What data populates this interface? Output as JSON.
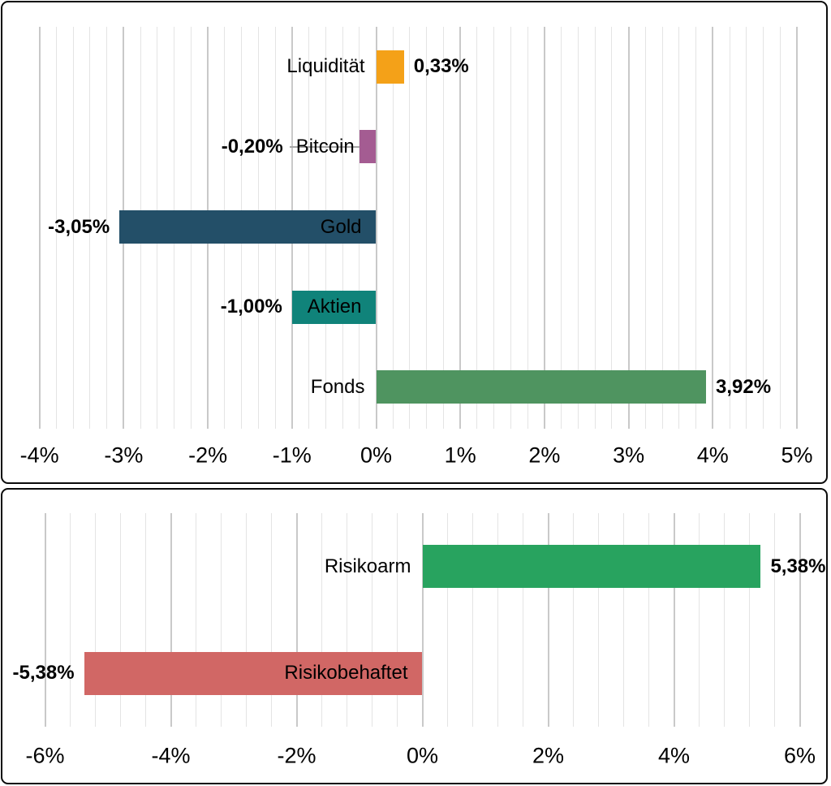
{
  "colors": {
    "panel_border": "#0b0b0b",
    "background": "#ffffff",
    "grid_major": "#c9c9c9",
    "grid_minor": "#e4e4e4",
    "leader_line": "#a6a6a6",
    "text": "#000000"
  },
  "chart_data": [
    {
      "type": "bar",
      "orientation": "horizontal",
      "title": "",
      "xlabel": "",
      "ylabel": "",
      "legend": false,
      "grid": true,
      "categories": [
        "Liquidität",
        "Bitcoin",
        "Gold",
        "Aktien",
        "Fonds"
      ],
      "values": [
        0.33,
        -0.2,
        -3.05,
        -1.0,
        3.92
      ],
      "value_labels": [
        "0,33%",
        "-0,20%",
        "-3,05%",
        "-1,00%",
        "3,92%"
      ],
      "bar_colors": [
        "#f4a118",
        "#a45c92",
        "#234f68",
        "#10837a",
        "#4f9460"
      ],
      "xlim": [
        -4,
        5
      ],
      "x_major_step": 1,
      "x_minor_step": 0.2,
      "x_ticks": [
        -4,
        -3,
        -2,
        -1,
        0,
        1,
        2,
        3,
        4,
        5
      ],
      "x_tick_labels": [
        "-4%",
        "-3%",
        "-2%",
        "-1%",
        "0%",
        "1%",
        "2%",
        "3%",
        "4%",
        "5%"
      ]
    },
    {
      "type": "bar",
      "orientation": "horizontal",
      "title": "",
      "xlabel": "",
      "ylabel": "",
      "legend": false,
      "grid": true,
      "categories": [
        "Risikoarm",
        "Risikobehaftet"
      ],
      "values": [
        5.38,
        -5.38
      ],
      "value_labels": [
        "5,38%",
        "-5,38%"
      ],
      "bar_colors": [
        "#28a35f",
        "#d16765"
      ],
      "xlim": [
        -6,
        6
      ],
      "x_major_step": 2,
      "x_minor_step": 0.4,
      "x_ticks": [
        -6,
        -4,
        -2,
        0,
        2,
        4,
        6
      ],
      "x_tick_labels": [
        "-6%",
        "-4%",
        "-2%",
        "0%",
        "2%",
        "4%",
        "6%"
      ]
    }
  ]
}
